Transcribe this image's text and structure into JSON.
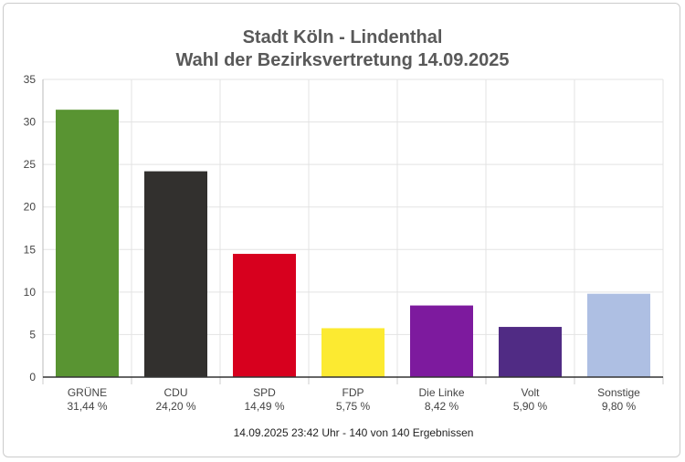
{
  "chart_data": {
    "type": "bar",
    "title": "Stadt Köln - Lindenthal",
    "subtitle": "Wahl der Bezirksvertretung 14.09.2025",
    "xlabel": "",
    "ylabel": "",
    "ylim": [
      0,
      35
    ],
    "yticks": [
      "0",
      "5",
      "10",
      "15",
      "20",
      "25",
      "30",
      "35"
    ],
    "grid": true,
    "categories": [
      "GRÜNE",
      "CDU",
      "SPD",
      "FDP",
      "Die Linke",
      "Volt",
      "Sonstige"
    ],
    "values": [
      31.44,
      24.2,
      14.49,
      5.75,
      8.42,
      5.9,
      9.8
    ],
    "value_labels": [
      "31,44 %",
      "24,20 %",
      "14,49 %",
      "5,75 %",
      "8,42 %",
      "5,90 %",
      "9,80 %"
    ],
    "colors": [
      "#599432",
      "#32302e",
      "#d7001e",
      "#fcea31",
      "#7d1a9e",
      "#502b84",
      "#aebfe3"
    ],
    "footer": "14.09.2025 23:42 Uhr - 140 von 140 Ergebnissen"
  }
}
